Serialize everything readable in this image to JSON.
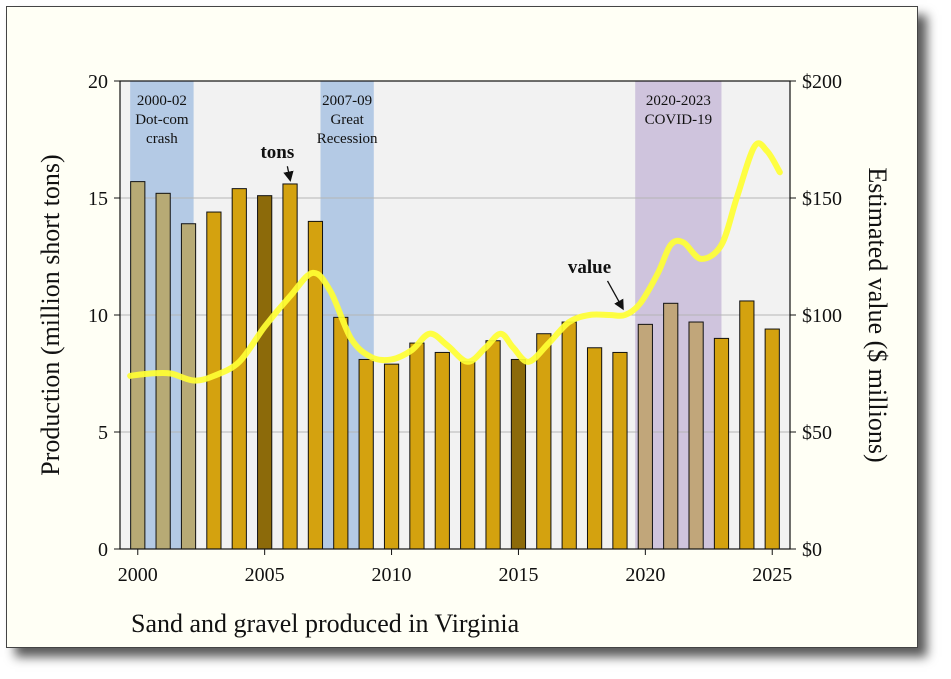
{
  "chart_data": {
    "type": "bar",
    "caption": "Sand and gravel produced in Virginia",
    "x": [
      2000,
      2001,
      2002,
      2003,
      2004,
      2005,
      2006,
      2007,
      2008,
      2009,
      2010,
      2011,
      2012,
      2013,
      2014,
      2015,
      2016,
      2017,
      2018,
      2019,
      2020,
      2021,
      2022,
      2023,
      2024,
      2025
    ],
    "xlim": [
      1999.3,
      2025.7
    ],
    "xticks": [
      2000,
      2005,
      2010,
      2015,
      2020,
      2025
    ],
    "series": [
      {
        "name": "tons",
        "type": "bar",
        "axis": "left",
        "values": [
          15.7,
          15.2,
          13.9,
          14.4,
          15.4,
          15.1,
          15.6,
          14.0,
          9.9,
          8.1,
          7.9,
          8.8,
          8.4,
          8.0,
          8.9,
          8.1,
          9.2,
          9.7,
          8.6,
          8.4,
          9.6,
          10.5,
          9.7,
          9.0,
          10.6,
          9.4
        ],
        "color": "#d4a20f",
        "shaded_color": "#b7aa75",
        "shaded_purple_color": "#c1a67a",
        "dark_color": "#8c6a0a"
      },
      {
        "name": "value",
        "type": "line",
        "axis": "right",
        "x": [
          1999.7,
          2000.5,
          2001.3,
          2002.2,
          2003.0,
          2004.0,
          2005.0,
          2006.0,
          2006.9,
          2007.6,
          2008.4,
          2009.2,
          2010.0,
          2010.8,
          2011.5,
          2012.2,
          2013.0,
          2013.7,
          2014.3,
          2014.8,
          2015.4,
          2016.2,
          2017.0,
          2017.8,
          2018.6,
          2019.2,
          2019.8,
          2020.5,
          2021.0,
          2021.5,
          2022.2,
          2023.0,
          2023.6,
          2024.3,
          2024.8,
          2025.3
        ],
        "values": [
          74,
          75,
          75,
          72,
          74,
          80,
          95,
          108,
          118,
          110,
          90,
          82,
          81,
          85,
          92,
          87,
          80,
          86,
          92,
          86,
          80,
          88,
          97,
          100,
          100,
          100,
          105,
          118,
          130,
          131,
          124,
          130,
          150,
          172,
          170,
          161
        ],
        "color": "#ffff33"
      }
    ],
    "left_axis": {
      "label": "Production (million short tons)",
      "ylim": [
        0,
        20
      ],
      "ticks": [
        0,
        5,
        10,
        15,
        20
      ],
      "tick_labels": [
        "0",
        "5",
        "10",
        "15",
        "20"
      ]
    },
    "right_axis": {
      "label": "Estimated value ($ millions)",
      "ylim": [
        0,
        200
      ],
      "ticks": [
        0,
        50,
        100,
        150,
        200
      ],
      "tick_labels": [
        "$0",
        "$50",
        "$100",
        "$150",
        "$200"
      ]
    },
    "grid": true,
    "shaded_periods": [
      {
        "start": 1999.7,
        "end": 2002.2,
        "lines": [
          "2000-02",
          "Dot-com",
          "crash"
        ],
        "color": "#a9c3e3"
      },
      {
        "start": 2007.2,
        "end": 2009.3,
        "lines": [
          "2007-09",
          "Great",
          "Recession"
        ],
        "color": "#a9c3e3"
      },
      {
        "start": 2019.6,
        "end": 2023.0,
        "lines": [
          "2020-2023",
          "COVID-19"
        ],
        "color": "#c9bcd9"
      }
    ],
    "callouts": [
      {
        "text": "tons",
        "label_x": 2005.5,
        "label_y": 16.7,
        "arrow_to_x": 2006.0,
        "arrow_to_y": 15.8
      },
      {
        "text": "value",
        "label_x": 2017.8,
        "label_y": 11.8,
        "arrow_to_x": 2019.1,
        "arrow_to_y": 10.3
      }
    ]
  }
}
